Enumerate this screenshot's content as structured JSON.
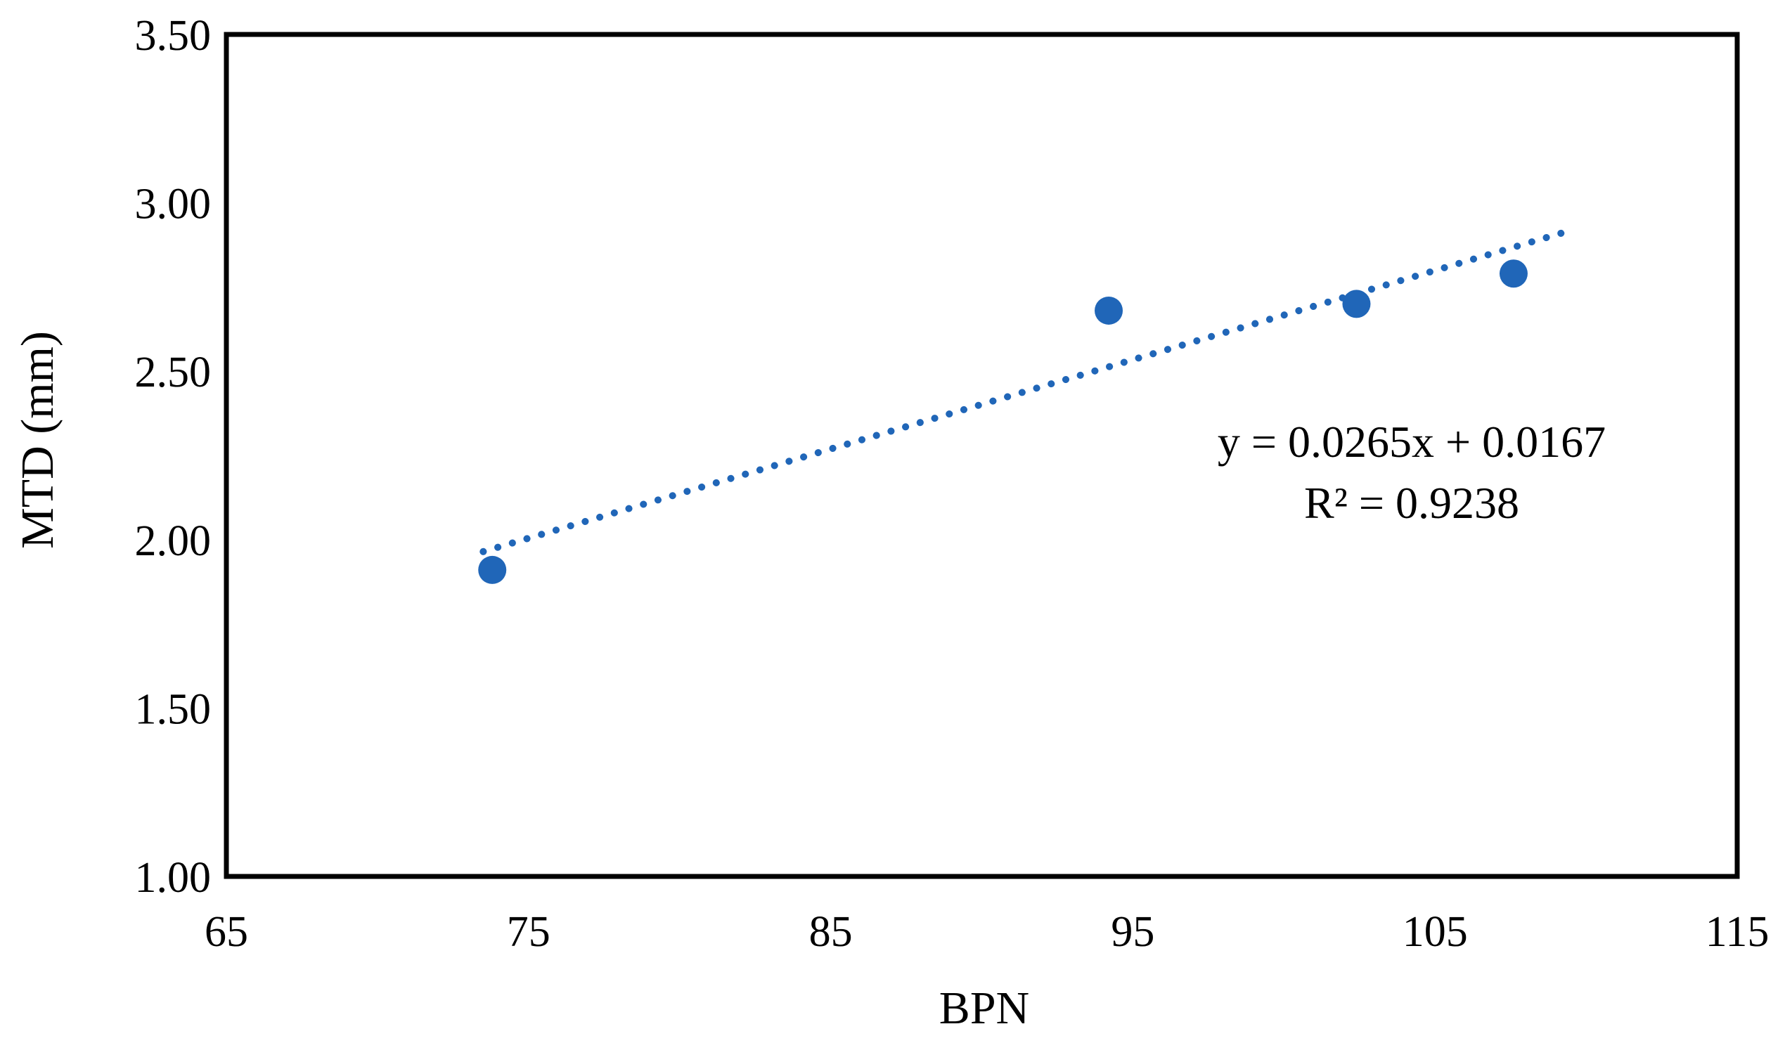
{
  "figure": {
    "background": "#ffffff"
  },
  "colors": {
    "accent_blue": "#2066b8",
    "axis": "#000000",
    "text": "#000000"
  },
  "chart_data": {
    "type": "scatter",
    "title": "",
    "xlabel": "BPN",
    "ylabel": "MTD (mm)",
    "xlim": [
      65,
      115
    ],
    "ylim": [
      1.0,
      3.5
    ],
    "grid": false,
    "legend": false,
    "marker_radius_px": 20,
    "x_ticks": [
      {
        "value": 65,
        "label": "65"
      },
      {
        "value": 75,
        "label": "75"
      },
      {
        "value": 85,
        "label": "85"
      },
      {
        "value": 95,
        "label": "95"
      },
      {
        "value": 105,
        "label": "105"
      },
      {
        "value": 115,
        "label": "115"
      }
    ],
    "y_ticks": [
      {
        "value": 1.0,
        "label": "1.00"
      },
      {
        "value": 1.5,
        "label": "1.50"
      },
      {
        "value": 2.0,
        "label": "2.00"
      },
      {
        "value": 2.5,
        "label": "2.50"
      },
      {
        "value": 3.0,
        "label": "3.00"
      },
      {
        "value": 3.5,
        "label": "3.50"
      }
    ],
    "points": [
      {
        "x": 73.8,
        "y": 1.91
      },
      {
        "x": 94.2,
        "y": 2.68
      },
      {
        "x": 102.4,
        "y": 2.7
      },
      {
        "x": 107.6,
        "y": 2.79
      }
    ],
    "trendline": {
      "style": "dotted",
      "slope": 0.0265,
      "intercept": 0.0167,
      "x_start": 73.5,
      "x_end": 109.3,
      "equation_label": "y = 0.0265x + 0.0167",
      "r2_label": "R² = 0.9238"
    }
  }
}
